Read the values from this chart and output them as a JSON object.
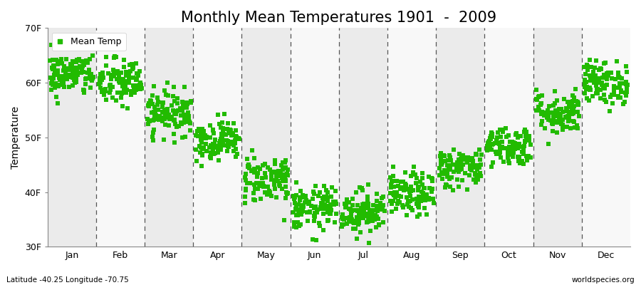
{
  "title": "Monthly Mean Temperatures 1901  -  2009",
  "ylabel": "Temperature",
  "ylim": [
    30,
    70
  ],
  "yticks": [
    30,
    40,
    50,
    60,
    70
  ],
  "ytick_labels": [
    "30F",
    "40F",
    "50F",
    "60F",
    "70F"
  ],
  "months": [
    "Jan",
    "Feb",
    "Mar",
    "Apr",
    "May",
    "Jun",
    "Jul",
    "Aug",
    "Sep",
    "Oct",
    "Nov",
    "Dec"
  ],
  "monthly_mean_F": [
    61.5,
    60.0,
    54.5,
    49.5,
    42.5,
    37.0,
    36.5,
    39.5,
    44.5,
    48.5,
    54.5,
    60.0
  ],
  "monthly_std_F": [
    2.0,
    2.2,
    2.0,
    1.8,
    2.2,
    2.0,
    2.0,
    2.0,
    1.8,
    1.8,
    2.0,
    2.0
  ],
  "n_years": 109,
  "marker_color": "#22bb00",
  "marker": "s",
  "marker_size": 4,
  "bg_color_odd": "#ebebeb",
  "bg_color_even": "#f8f8f8",
  "title_fontsize": 15,
  "axis_fontsize": 10,
  "tick_fontsize": 9,
  "legend_label": "Mean Temp",
  "footer_left": "Latitude -40.25 Longitude -70.75",
  "footer_right": "worldspecies.org",
  "seed": 42
}
